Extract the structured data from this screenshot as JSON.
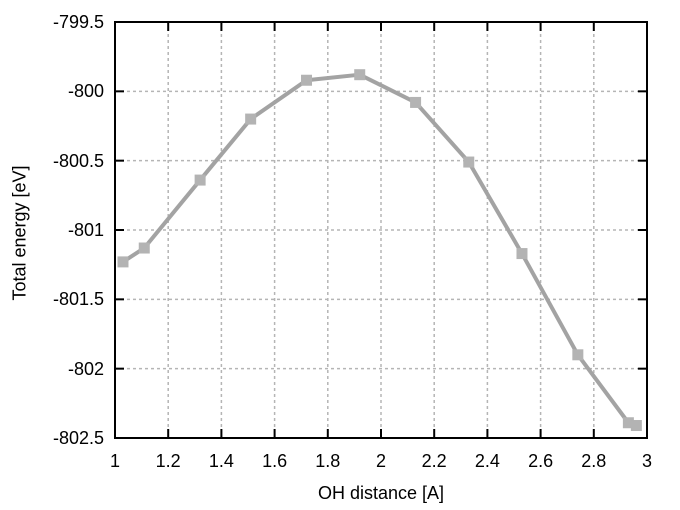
{
  "chart_data": {
    "type": "line",
    "title": "",
    "xlabel": "OH distance [A]",
    "ylabel": "Total energy [eV]",
    "xlim": [
      1,
      3
    ],
    "ylim": [
      -802.5,
      -799.5
    ],
    "x_ticks": [
      1,
      1.2,
      1.4,
      1.6,
      1.8,
      2,
      2.2,
      2.4,
      2.6,
      2.8,
      3
    ],
    "x_tick_labels": [
      "1",
      "1.2",
      "1.4",
      "1.6",
      "1.8",
      "2",
      "2.2",
      "2.4",
      "2.6",
      "2.8",
      "3"
    ],
    "y_ticks": [
      -799.5,
      -800,
      -800.5,
      -801,
      -801.5,
      -802,
      -802.5
    ],
    "y_tick_labels": [
      "-799.5",
      "-800",
      "-800.5",
      "-801",
      "-801.5",
      "-802",
      "-802.5"
    ],
    "grid": true,
    "grid_style": "dashed",
    "legend": false,
    "series": [
      {
        "name": "total-energy-vs-oh-distance",
        "marker": "square",
        "x": [
          1.03,
          1.11,
          1.32,
          1.51,
          1.72,
          1.92,
          2.13,
          2.33,
          2.53,
          2.74,
          2.93,
          2.96
        ],
        "y": [
          -801.23,
          -801.13,
          -800.64,
          -800.2,
          -799.92,
          -799.88,
          -800.08,
          -800.51,
          -801.17,
          -801.9,
          -802.39,
          -802.41
        ]
      }
    ],
    "colors": {
      "background": "#ffffff",
      "border": "#000000",
      "grid": "#b5b5b5",
      "line": "#a3a3a3",
      "marker": "#b3b3b3",
      "text": "#000000"
    }
  }
}
